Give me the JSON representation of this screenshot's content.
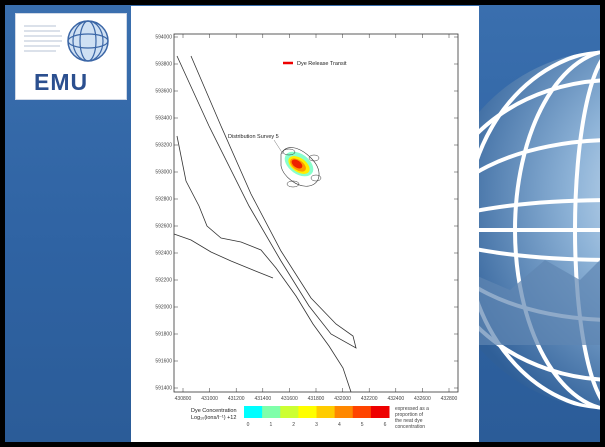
{
  "logo": {
    "text": "EMU"
  },
  "map": {
    "legend_title": "Dye Release Transit",
    "survey_label": "Distribution Survey 5",
    "y_ticks": [
      "594000",
      "593800",
      "593600",
      "593400",
      "593200",
      "593000",
      "592800",
      "592600",
      "592400",
      "592200",
      "592000",
      "591800",
      "591600",
      "591400"
    ],
    "x_ticks": [
      "430800",
      "431000",
      "431200",
      "431400",
      "431600",
      "431800",
      "432000",
      "432200",
      "432400",
      "432600",
      "432800"
    ],
    "colorbar": {
      "title_line1": "Dye Concentration",
      "title_line2": "Log₁₀(ions/l⁻¹) +12",
      "tick_labels": [
        "0",
        "1",
        "2",
        "3",
        "4",
        "5",
        "6"
      ],
      "note_line1": "expressed as a",
      "note_line2": "proportion of",
      "note_line3": "the neat dye",
      "note_line4": "concentration",
      "colors": [
        "#00ffff",
        "#7fffaa",
        "#ccff33",
        "#ffff00",
        "#ffcc00",
        "#ff8800",
        "#ff4400",
        "#ee0000"
      ]
    }
  }
}
